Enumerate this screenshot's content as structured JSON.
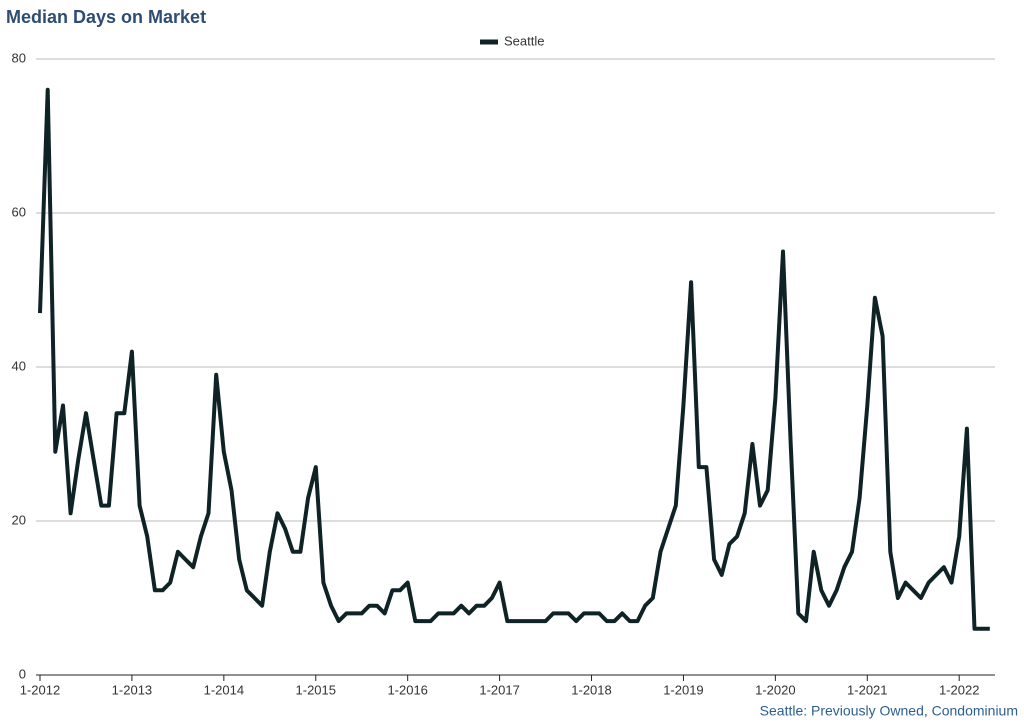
{
  "chart_data": {
    "type": "line",
    "title": "Median Days on Market",
    "note": "Seattle: Previously Owned, Condominium",
    "categories": [
      "1-2012",
      null,
      null,
      null,
      null,
      null,
      null,
      null,
      null,
      null,
      null,
      null,
      "1-2013",
      null,
      null,
      null,
      null,
      null,
      null,
      null,
      null,
      null,
      null,
      null,
      "1-2014",
      null,
      null,
      null,
      null,
      null,
      null,
      null,
      null,
      null,
      null,
      null,
      "1-2015",
      null,
      null,
      null,
      null,
      null,
      null,
      null,
      null,
      null,
      null,
      null,
      "1-2016",
      null,
      null,
      null,
      null,
      null,
      null,
      null,
      null,
      null,
      null,
      null,
      "1-2017",
      null,
      null,
      null,
      null,
      null,
      null,
      null,
      null,
      null,
      null,
      null,
      "1-2018",
      null,
      null,
      null,
      null,
      null,
      null,
      null,
      null,
      null,
      null,
      null,
      "1-2019",
      null,
      null,
      null,
      null,
      null,
      null,
      null,
      null,
      null,
      null,
      null,
      "1-2020",
      null,
      null,
      null,
      null,
      null,
      null,
      null,
      null,
      null,
      null,
      null,
      "1-2021",
      null,
      null,
      null,
      null,
      null,
      null,
      null,
      null,
      null,
      null,
      null,
      "1-2022",
      null,
      null,
      null,
      null
    ],
    "series": [
      {
        "name": "Seattle",
        "color": "#0f2326",
        "values": [
          47,
          76,
          29,
          35,
          21,
          28,
          34,
          28,
          22,
          22,
          34,
          34,
          42,
          22,
          18,
          11,
          11,
          12,
          16,
          15,
          14,
          18,
          21,
          39,
          29,
          24,
          15,
          11,
          10,
          9,
          16,
          21,
          19,
          16,
          16,
          23,
          27,
          12,
          9,
          7,
          8,
          8,
          8,
          9,
          9,
          8,
          11,
          11,
          12,
          7,
          7,
          7,
          8,
          8,
          8,
          9,
          8,
          9,
          9,
          10,
          12,
          7,
          7,
          7,
          7,
          7,
          7,
          8,
          8,
          8,
          7,
          8,
          8,
          8,
          7,
          7,
          8,
          7,
          7,
          9,
          10,
          16,
          19,
          22,
          35,
          51,
          27,
          27,
          15,
          13,
          17,
          18,
          21,
          30,
          22,
          24,
          36,
          55,
          30,
          8,
          7,
          16,
          11,
          9,
          11,
          14,
          16,
          23,
          35,
          49,
          44,
          16,
          10,
          12,
          11,
          10,
          12,
          13,
          14,
          12,
          18,
          32,
          6,
          6,
          6
        ]
      }
    ],
    "ylim": [
      0,
      80
    ],
    "yticks": [
      0,
      20,
      40,
      60,
      80
    ],
    "grid": true,
    "legend": "top"
  }
}
